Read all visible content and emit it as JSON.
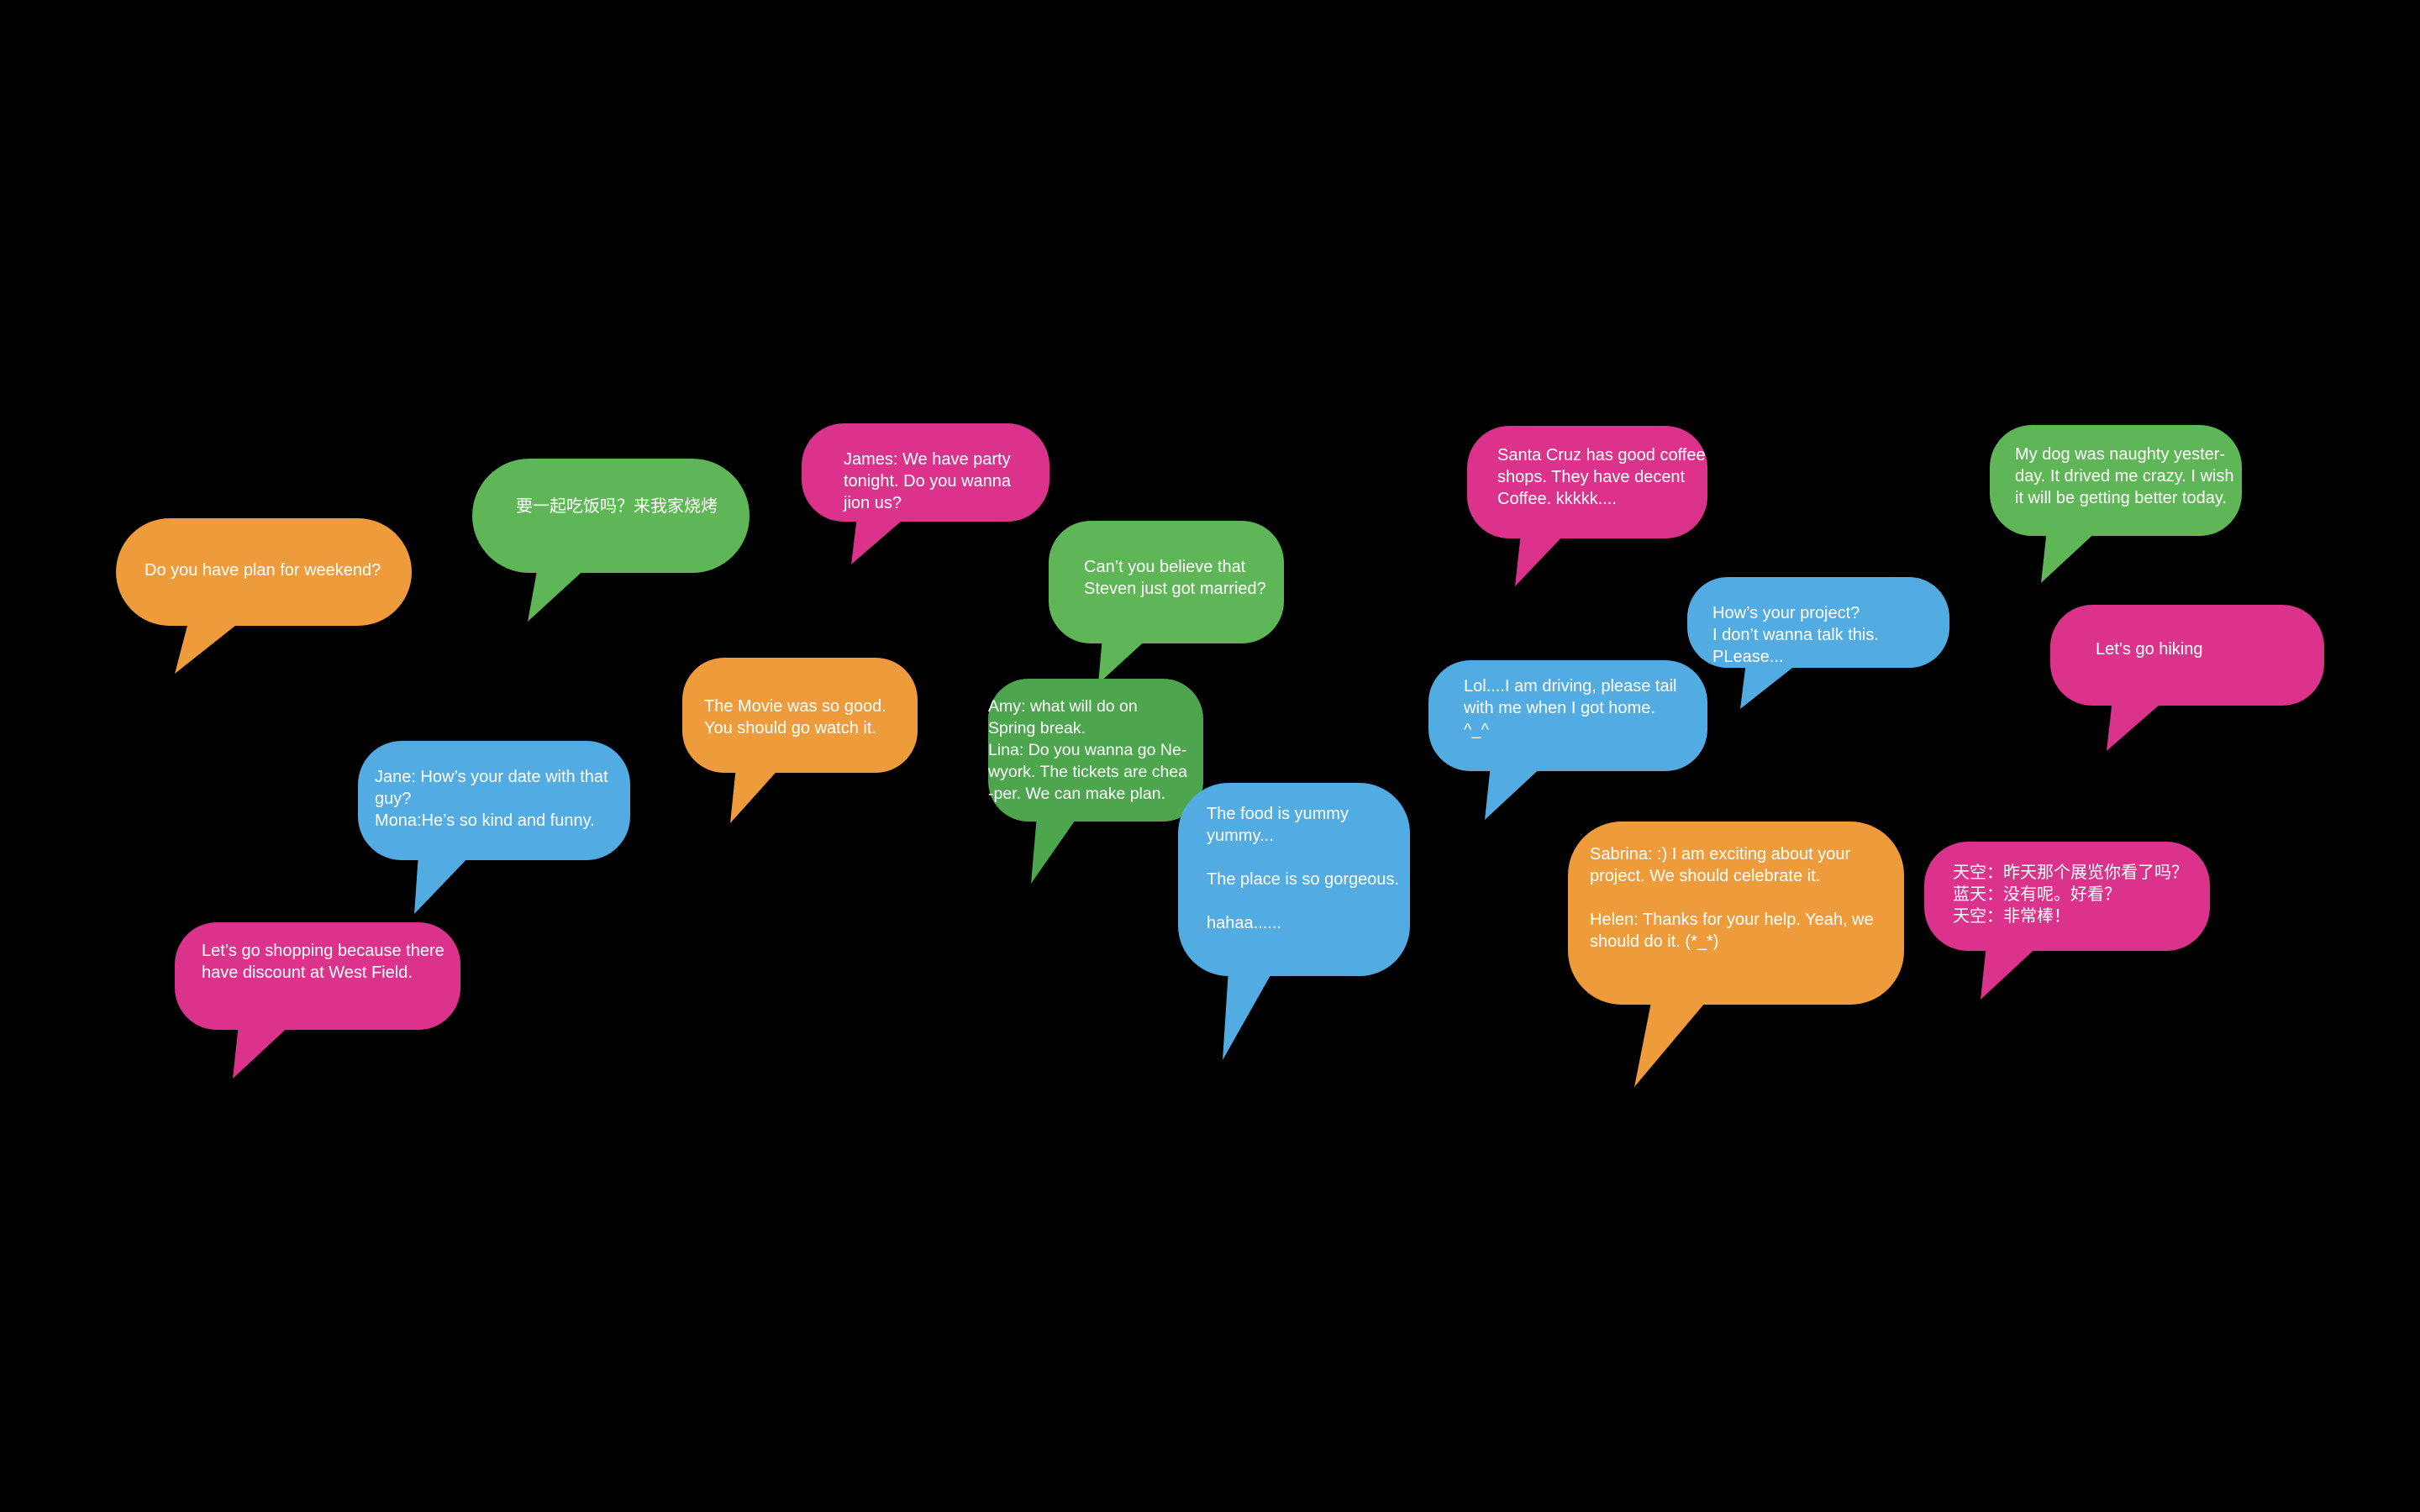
{
  "background_color": "#000000",
  "palette": {
    "orange": "#EE9B3B",
    "green": "#5FB656",
    "pink": "#DB338C",
    "blue": "#52ABE1",
    "dark_green": "#4DA54E"
  },
  "bubbles": [
    {
      "color": "orange",
      "text": "Do you have plan for weekend?"
    },
    {
      "color": "green",
      "text": "要一起吃饭吗？来我家烧烤"
    },
    {
      "color": "pink",
      "text": "James: We have party\ntonight. Do you wanna\njion us?"
    },
    {
      "color": "green",
      "text": "Can’t you believe that\nSteven just got married?"
    },
    {
      "color": "orange",
      "text": "The Movie was so good.\nYou should go watch it."
    },
    {
      "color": "blue",
      "text": "Jane: How’s your date with that\nguy?\n Mona:He’s so kind and funny."
    },
    {
      "color": "pink",
      "text": "Let’s go shopping because there\nhave discount at West Field."
    },
    {
      "color": "dark_green",
      "text": "  Amy: what will do on\nSpring break.\n  Lina: Do you wanna go Ne-\n wyork. The tickets  are chea\n -per. We can make plan."
    },
    {
      "color": "blue",
      "text": "The food is yummy\nyummy...\n\nThe place is so gorgeous.\n\nhahaa......"
    },
    {
      "color": "pink",
      "text": "Santa Cruz has good coffee\nshops. They have decent\nCoffee. kkkkk...."
    },
    {
      "color": "blue",
      "text": "Lol....I am driving, please tail\nwith me when I got home.\n^_^"
    },
    {
      "color": "blue",
      "text": "How’s your project?\nI don’t wanna talk this. PLease..."
    },
    {
      "color": "orange",
      "text": "Sabrina: :) I am exciting about your\nproject. We should celebrate it.\n\nHelen: Thanks for your help. Yeah, we\nshould do it. (*_*)"
    },
    {
      "color": "green",
      "text": "My dog was naughty yester-\nday. It drived me crazy. I wish\nit will be getting better today."
    },
    {
      "color": "pink",
      "text": "Let’s go hiking"
    },
    {
      "color": "pink",
      "text": "天空：昨天那个展览你看了吗？\n蓝天：没有呢。好看？\n天空：非常棒！"
    }
  ]
}
